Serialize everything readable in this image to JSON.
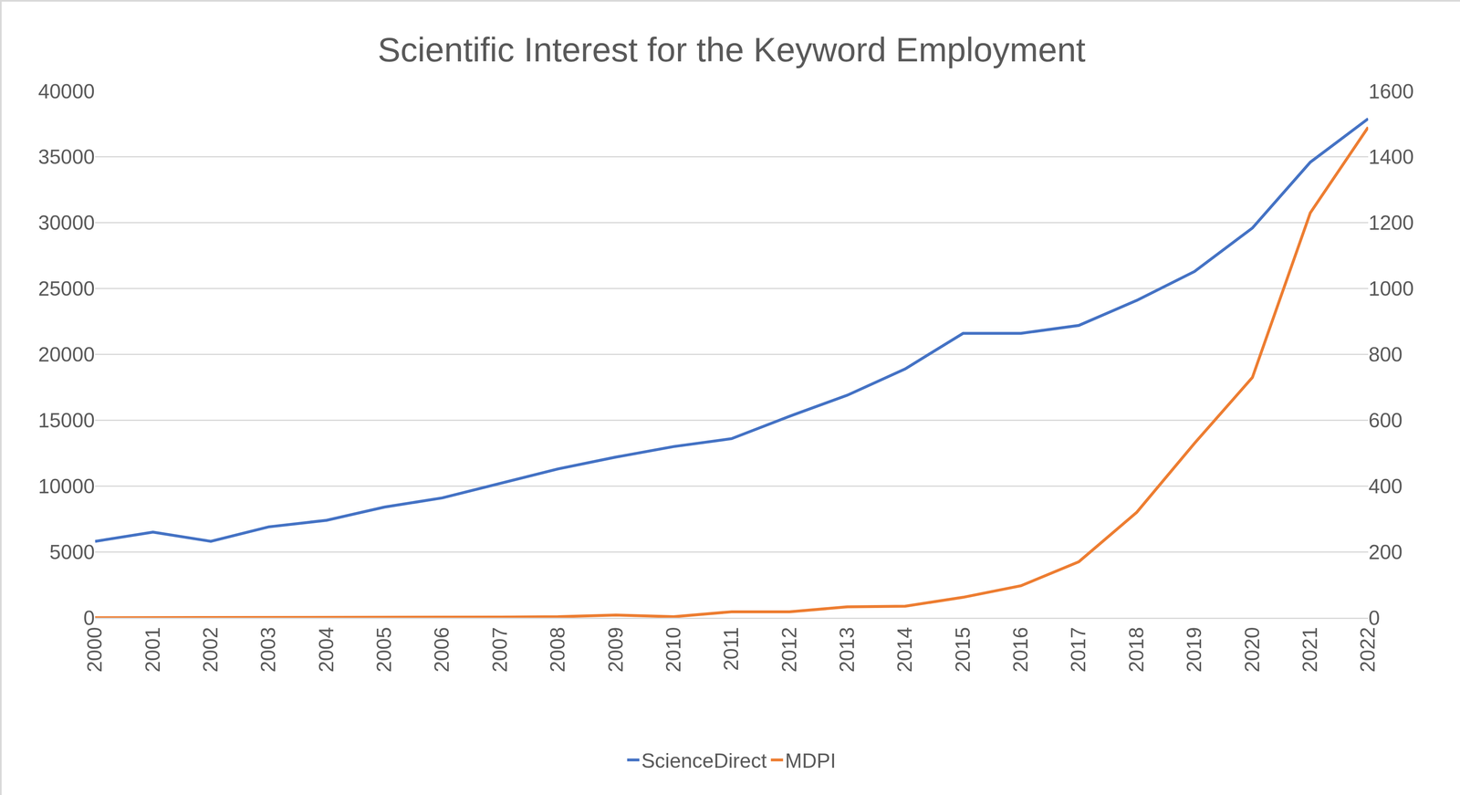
{
  "chart_data": {
    "type": "line",
    "title": "Scientific Interest for the Keyword Employment",
    "categories": [
      "2000",
      "2001",
      "2002",
      "2003",
      "2004",
      "2005",
      "2006",
      "2007",
      "2008",
      "2009",
      "2010",
      "2011",
      "2012",
      "2013",
      "2014",
      "2015",
      "2016",
      "2017",
      "2018",
      "2019",
      "2020",
      "2021",
      "2022"
    ],
    "series": [
      {
        "name": "ScienceDirect",
        "color": "#4472c4",
        "values": [
          5800,
          6500,
          5800,
          6900,
          7400,
          8400,
          9100,
          10200,
          11300,
          12200,
          13000,
          13600,
          15300,
          16900,
          18900,
          21600,
          21600,
          22200,
          24100,
          26300,
          29600,
          34600,
          37900
        ]
      },
      {
        "name": "MDPI",
        "color": "#ed7d31",
        "axis": "y2",
        "values": [
          0,
          0,
          0,
          0,
          0,
          1,
          2,
          2,
          3,
          8,
          3,
          18,
          18,
          33,
          35,
          62,
          97,
          170,
          320,
          530,
          730,
          1230,
          1490
        ]
      }
    ],
    "ylim": [
      0,
      40000
    ],
    "yticks": [
      0,
      5000,
      10000,
      15000,
      20000,
      25000,
      30000,
      35000,
      40000
    ],
    "y2lim": [
      0,
      1600
    ],
    "y2ticks": [
      0,
      200,
      400,
      600,
      800,
      1000,
      1200,
      1400,
      1600
    ],
    "grid": true,
    "legend": "bottom"
  }
}
